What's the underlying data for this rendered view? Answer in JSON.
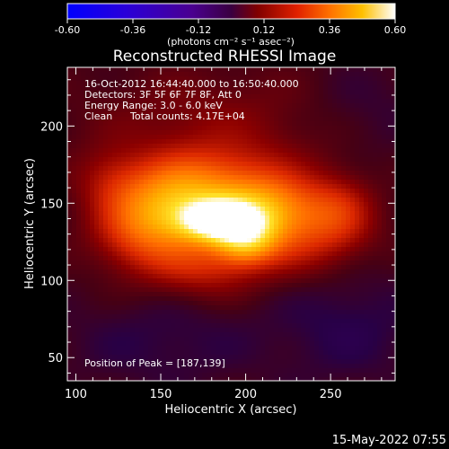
{
  "chart_data": {
    "type": "heatmap",
    "title": "Reconstructed RHESSI Image",
    "xlabel": "Heliocentric X (arcsec)",
    "ylabel": "Heliocentric Y (arcsec)",
    "xlim": [
      95,
      288
    ],
    "ylim": [
      35,
      238
    ],
    "x_ticks": [
      100,
      150,
      200,
      250
    ],
    "y_ticks": [
      50,
      100,
      150,
      200
    ],
    "colorbar": {
      "ticks": [
        "-0.60",
        "-0.36",
        "-0.12",
        "0.12",
        "0.36",
        "0.60"
      ],
      "range": [
        -0.6,
        0.6
      ],
      "colormap": "blue-purple-red-yellow-white",
      "unit_label": "(photons cm⁻² s⁻¹ asec⁻²)"
    },
    "peak": {
      "x": 187,
      "y": 139,
      "value": 0.6
    },
    "sources": [
      {
        "x": 185,
        "y": 139,
        "amplitude": 0.52,
        "sx": 16,
        "sy": 9
      },
      {
        "x": 200,
        "y": 126,
        "amplitude": 0.24,
        "sx": 12,
        "sy": 10
      },
      {
        "x": 160,
        "y": 150,
        "amplitude": 0.24,
        "sx": 22,
        "sy": 16
      },
      {
        "x": 210,
        "y": 148,
        "amplitude": 0.22,
        "sx": 22,
        "sy": 14
      },
      {
        "x": 140,
        "y": 132,
        "amplitude": 0.18,
        "sx": 20,
        "sy": 18
      },
      {
        "x": 225,
        "y": 130,
        "amplitude": 0.15,
        "sx": 28,
        "sy": 18
      },
      {
        "x": 175,
        "y": 110,
        "amplitude": 0.12,
        "sx": 22,
        "sy": 14
      },
      {
        "x": 180,
        "y": 168,
        "amplitude": 0.12,
        "sx": 32,
        "sy": 15
      },
      {
        "x": 255,
        "y": 145,
        "amplitude": 0.1,
        "sx": 14,
        "sy": 16
      },
      {
        "x": 120,
        "y": 165,
        "amplitude": 0.07,
        "sx": 14,
        "sy": 14
      },
      {
        "x": 180,
        "y": 200,
        "amplitude": 0.06,
        "sx": 50,
        "sy": 25
      },
      {
        "x": 150,
        "y": 60,
        "amplitude": -0.04,
        "sx": 40,
        "sy": 20
      },
      {
        "x": 260,
        "y": 70,
        "amplitude": -0.05,
        "sx": 30,
        "sy": 25
      },
      {
        "x": 270,
        "y": 210,
        "amplitude": -0.03,
        "sx": 25,
        "sy": 20
      }
    ]
  },
  "info": {
    "time_range": "16-Oct-2012 16:44:40.000 to 16:50:40.000",
    "detectors": "Detectors: 3F 5F 6F 7F 8F, Att 0",
    "energy": "Energy Range: 3.0 - 6.0 keV",
    "algorithm": "Clean",
    "total_counts": "Total counts: 4.17E+04",
    "peak_position": "Position of Peak = [187,139]"
  },
  "footer": {
    "timestamp": "15-May-2022 07:55"
  }
}
